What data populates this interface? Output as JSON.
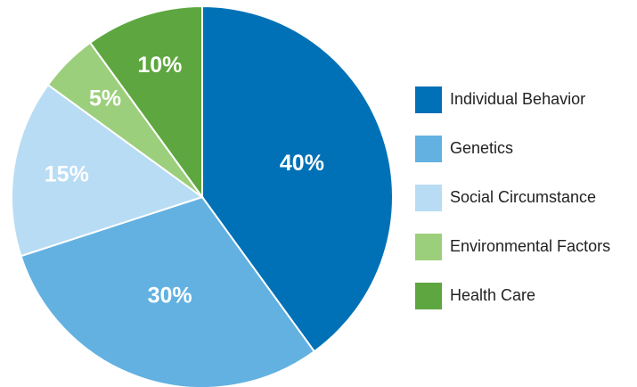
{
  "chart_data": {
    "type": "pie",
    "categories": [
      "Individual Behavior",
      "Genetics",
      "Social Circumstance",
      "Environmental Factors",
      "Health Care"
    ],
    "values": [
      40,
      30,
      15,
      5,
      10
    ],
    "value_labels": [
      "40%",
      "30%",
      "15%",
      "5%",
      "10%"
    ],
    "colors": [
      "#0071b6",
      "#62b1e1",
      "#b8dcf4",
      "#9ccf7c",
      "#5ea63f"
    ],
    "legend": "right"
  }
}
